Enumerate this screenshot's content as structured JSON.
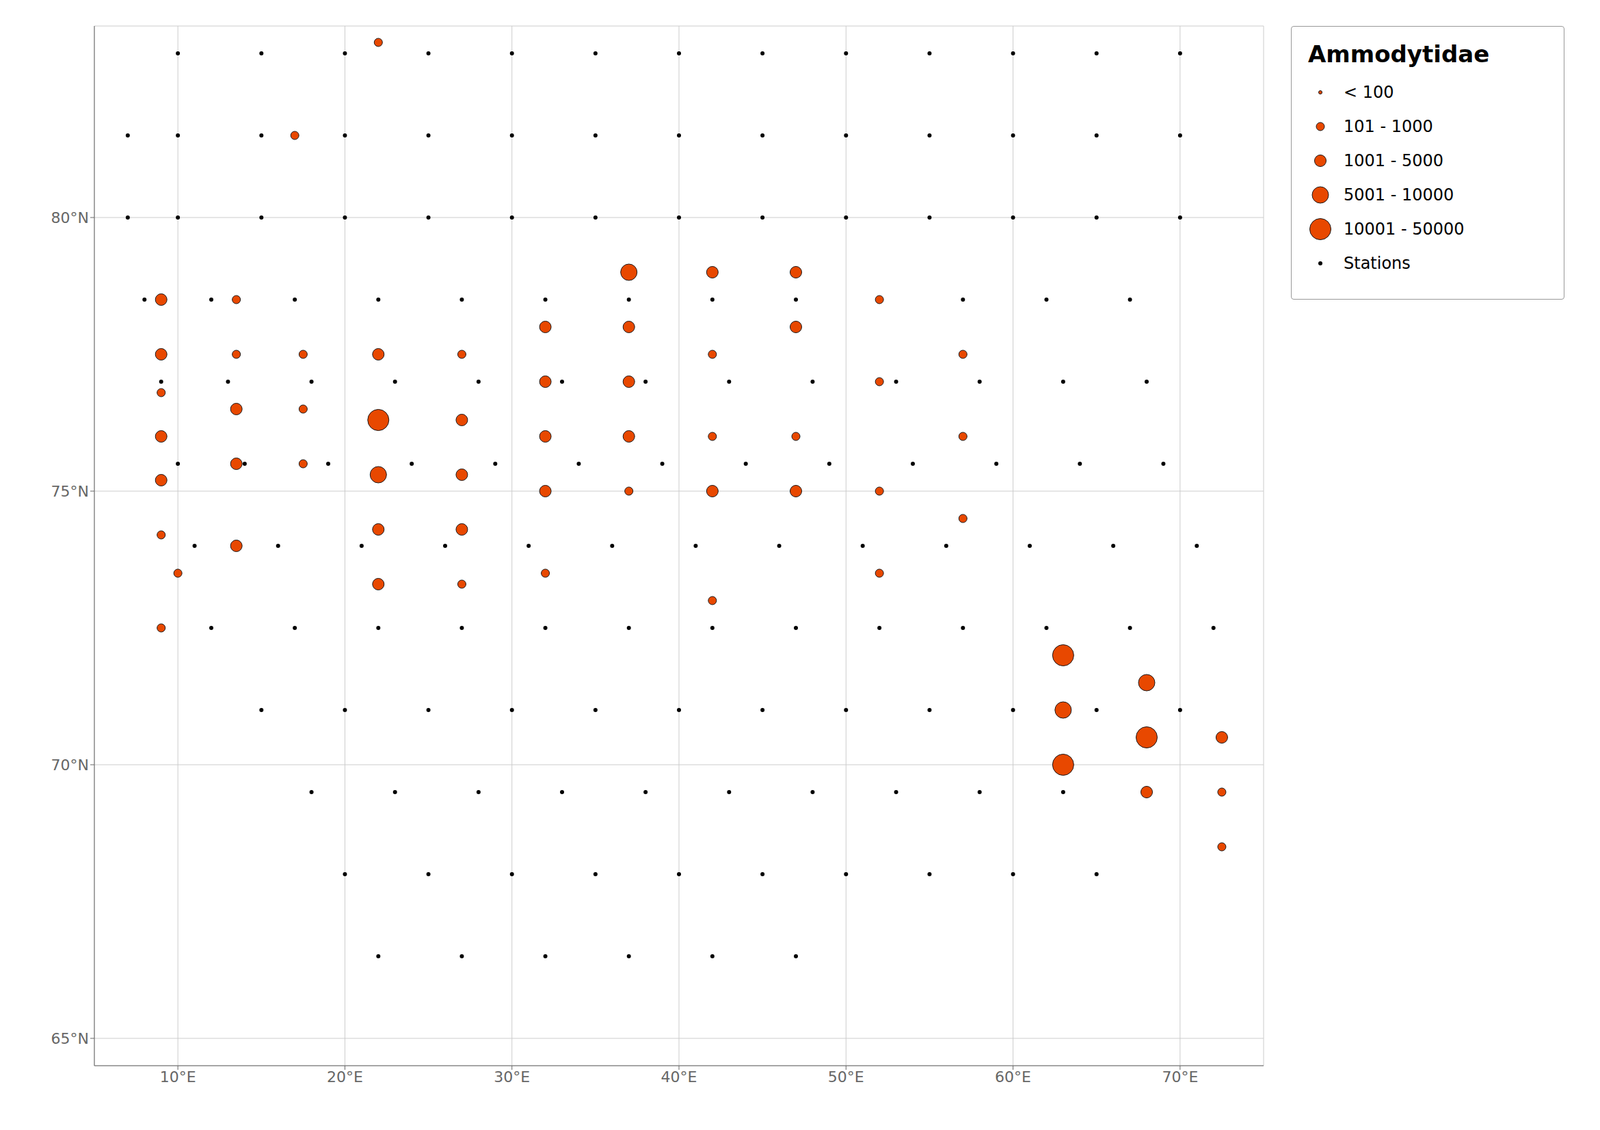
{
  "chart_data": {
    "type": "scatter",
    "title": "Ammodytidae",
    "xlim": [
      5,
      75
    ],
    "ylim": [
      64.5,
      83.5
    ],
    "xticks": [
      {
        "value": 10,
        "label": "10°E"
      },
      {
        "value": 20,
        "label": "20°E"
      },
      {
        "value": 30,
        "label": "30°E"
      },
      {
        "value": 40,
        "label": "40°E"
      },
      {
        "value": 50,
        "label": "50°E"
      },
      {
        "value": 60,
        "label": "60°E"
      },
      {
        "value": 70,
        "label": "70°E"
      }
    ],
    "yticks": [
      {
        "value": 65,
        "label": "65°N"
      },
      {
        "value": 70,
        "label": "70°N"
      },
      {
        "value": 75,
        "label": "75°N"
      },
      {
        "value": 80,
        "label": "80°N"
      }
    ],
    "grid": true,
    "legend": "upper right",
    "series": [
      {
        "name": "< 100",
        "color": "#e84800",
        "x": [],
        "y": []
      },
      {
        "name": "101 - 1000",
        "color": "#e84800",
        "x": [
          22,
          17,
          9.0,
          9.0,
          10.0,
          9.0,
          13.5,
          13.5,
          17.5,
          17.5,
          17.5,
          27.0,
          27.0,
          32.0,
          37.0,
          42.0,
          42.0,
          42.0,
          47.0,
          52.0,
          52.0,
          52.0,
          52.0,
          57.0,
          57.0,
          57.0,
          72.5,
          72.5
        ],
        "y": [
          83.2,
          81.5,
          76.8,
          74.2,
          73.5,
          72.5,
          78.5,
          77.5,
          77.5,
          76.5,
          75.5,
          77.5,
          73.3,
          73.5,
          75.0,
          77.5,
          76.0,
          73.0,
          76.0,
          78.5,
          77.0,
          75.0,
          73.5,
          77.5,
          76.0,
          74.5,
          69.5,
          68.5
        ]
      },
      {
        "name": "1001 - 5000",
        "color": "#e84800",
        "x": [
          9.0,
          9.0,
          9.0,
          9.0,
          13.5,
          13.5,
          13.5,
          22.0,
          22.0,
          22.0,
          27.0,
          27.0,
          27.0,
          32.0,
          32.0,
          32.0,
          32.0,
          37.0,
          37.0,
          37.0,
          42.0,
          42.0,
          47.0,
          47.0,
          47.0,
          68.0,
          72.5
        ],
        "y": [
          78.5,
          77.5,
          76.0,
          75.2,
          76.5,
          75.5,
          74.0,
          77.5,
          74.3,
          73.3,
          76.3,
          75.3,
          74.3,
          78.0,
          77.0,
          76.0,
          75.0,
          78.0,
          77.0,
          76.0,
          79.0,
          75.0,
          79.0,
          78.0,
          75.0,
          69.5,
          70.5
        ]
      },
      {
        "name": "5001 - 10000",
        "color": "#e84800",
        "x": [
          22.0,
          37.0,
          63.0,
          68.0
        ],
        "y": [
          75.3,
          79.0,
          71.0,
          71.5
        ]
      },
      {
        "name": "10001 - 50000",
        "color": "#e84800",
        "x": [
          22.0,
          63.0,
          63.0,
          68.0
        ],
        "y": [
          76.3,
          72.0,
          70.0,
          70.5
        ]
      },
      {
        "name": "Stations",
        "color": "#000000",
        "x": [
          10,
          15,
          20,
          25,
          30,
          35,
          40,
          45,
          50,
          55,
          60,
          65,
          70,
          7,
          10,
          15,
          20,
          25,
          30,
          35,
          40,
          45,
          50,
          55,
          60,
          65,
          70,
          7,
          10,
          15,
          20,
          25,
          30,
          35,
          40,
          45,
          50,
          55,
          60,
          65,
          70,
          8,
          12,
          17,
          22,
          27,
          32,
          37,
          42,
          47,
          52,
          57,
          62,
          67,
          9,
          13,
          18,
          23,
          28,
          33,
          38,
          43,
          48,
          53,
          58,
          63,
          68,
          10,
          14,
          19,
          24,
          29,
          34,
          39,
          44,
          49,
          54,
          59,
          64,
          69,
          11,
          16,
          21,
          26,
          31,
          36,
          41,
          46,
          51,
          56,
          61,
          66,
          71,
          12,
          17,
          22,
          27,
          32,
          37,
          42,
          47,
          52,
          57,
          62,
          67,
          72,
          15,
          20,
          25,
          30,
          35,
          40,
          45,
          50,
          55,
          60,
          65,
          70,
          18,
          23,
          28,
          33,
          38,
          43,
          48,
          53,
          58,
          63,
          68,
          20,
          25,
          30,
          35,
          40,
          45,
          50,
          55,
          60,
          65,
          22,
          27,
          32,
          37,
          42,
          47
        ],
        "y": [
          83,
          83,
          83,
          83,
          83,
          83,
          83,
          83,
          83,
          83,
          83,
          83,
          83,
          81.5,
          81.5,
          81.5,
          81.5,
          81.5,
          81.5,
          81.5,
          81.5,
          81.5,
          81.5,
          81.5,
          81.5,
          81.5,
          81.5,
          80,
          80,
          80,
          80,
          80,
          80,
          80,
          80,
          80,
          80,
          80,
          80,
          80,
          80,
          78.5,
          78.5,
          78.5,
          78.5,
          78.5,
          78.5,
          78.5,
          78.5,
          78.5,
          78.5,
          78.5,
          78.5,
          78.5,
          77,
          77,
          77,
          77,
          77,
          77,
          77,
          77,
          77,
          77,
          77,
          77,
          77,
          75.5,
          75.5,
          75.5,
          75.5,
          75.5,
          75.5,
          75.5,
          75.5,
          75.5,
          75.5,
          75.5,
          75.5,
          75.5,
          74,
          74,
          74,
          74,
          74,
          74,
          74,
          74,
          74,
          74,
          74,
          74,
          74,
          72.5,
          72.5,
          72.5,
          72.5,
          72.5,
          72.5,
          72.5,
          72.5,
          72.5,
          72.5,
          72.5,
          72.5,
          72.5,
          71,
          71,
          71,
          71,
          71,
          71,
          71,
          71,
          71,
          71,
          71,
          71,
          69.5,
          69.5,
          69.5,
          69.5,
          69.5,
          69.5,
          69.5,
          69.5,
          69.5,
          69.5,
          69.5,
          68,
          68,
          68,
          68,
          68,
          68,
          68,
          68,
          68,
          68,
          66.5,
          66.5,
          66.5,
          66.5,
          66.5,
          66.5
        ]
      }
    ]
  }
}
